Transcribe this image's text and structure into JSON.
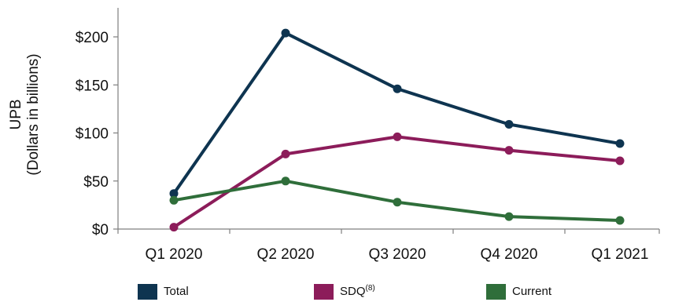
{
  "chart_data": {
    "type": "line",
    "categories": [
      "Q1 2020",
      "Q2 2020",
      "Q3 2020",
      "Q4 2020",
      "Q1 2021"
    ],
    "series": [
      {
        "name": "Total",
        "sup": "",
        "color": "#0e3450",
        "values": [
          37,
          204,
          146,
          109,
          89
        ]
      },
      {
        "name": "SDQ",
        "sup": "(8)",
        "color": "#8c1c5a",
        "values": [
          2,
          78,
          96,
          82,
          71
        ]
      },
      {
        "name": "Current",
        "sup": "",
        "color": "#2f6e3a",
        "values": [
          30,
          50,
          28,
          13,
          9
        ]
      }
    ],
    "ylabel_line1": "UPB",
    "ylabel_line2": "(Dollars in billions)",
    "yticks": [
      0,
      50,
      100,
      150,
      200
    ],
    "ytick_labels": [
      "$0",
      "$50",
      "$100",
      "$150",
      "$200"
    ],
    "ylim": [
      0,
      200
    ],
    "grid": false,
    "legend_position": "bottom"
  }
}
